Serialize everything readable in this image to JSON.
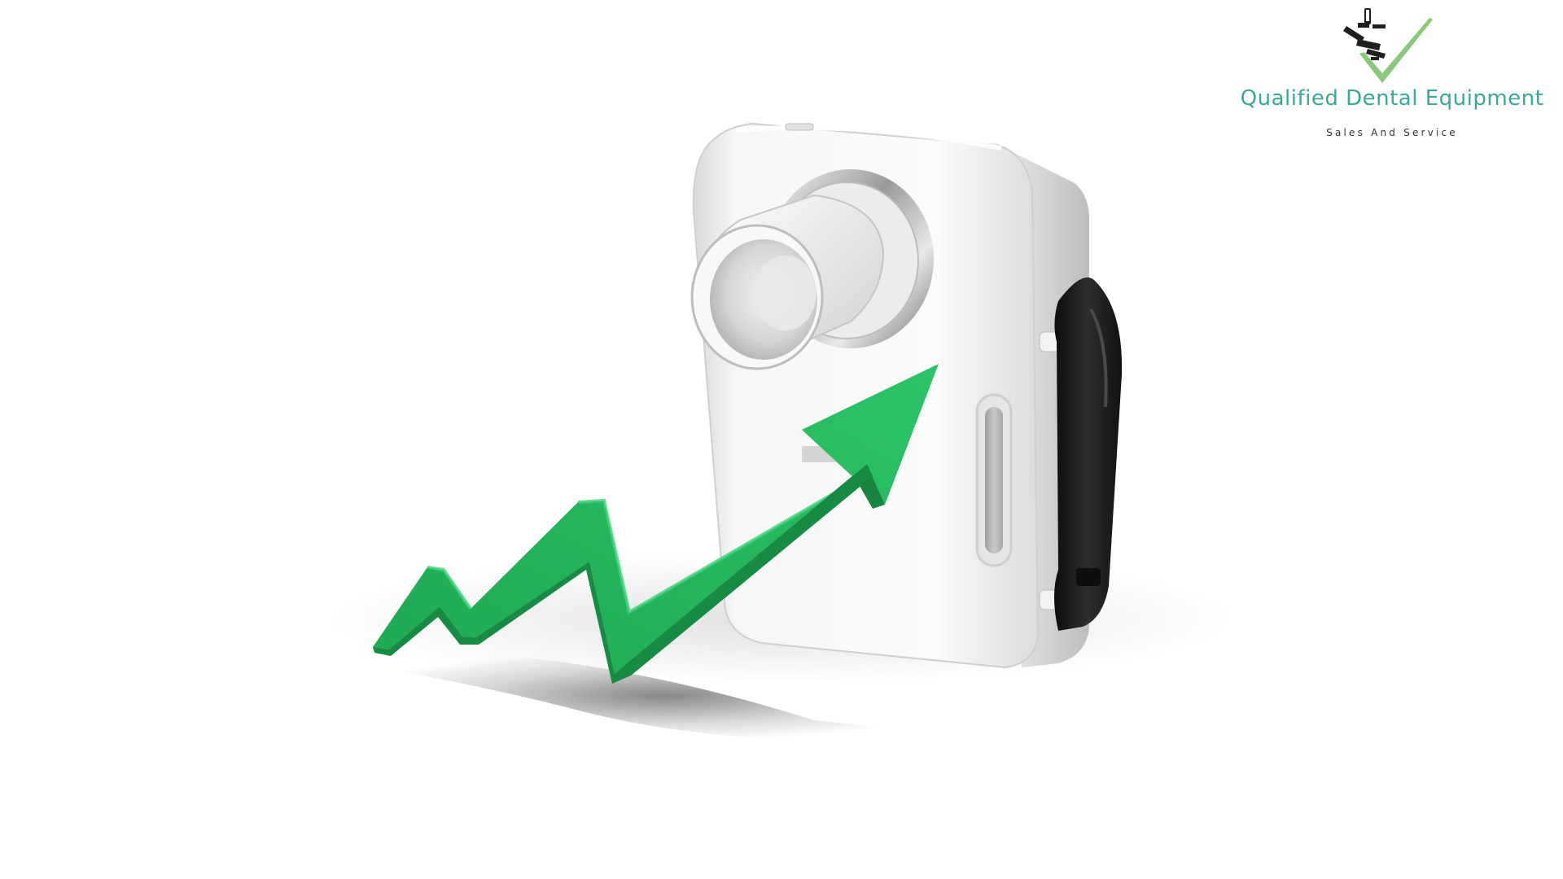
{
  "brand": {
    "name": "Qualified Dental Equipment",
    "tagline": "Sales And Service",
    "name_color": "#3aa899",
    "check_color": "#7fc46b",
    "icon": "dental-chair-icon"
  },
  "scene": {
    "subject": "portable-dental-xray-unit",
    "device_color": "#f2f2f2",
    "strap_color": "#1a1a1a",
    "arrow_color": "#22b45a"
  }
}
